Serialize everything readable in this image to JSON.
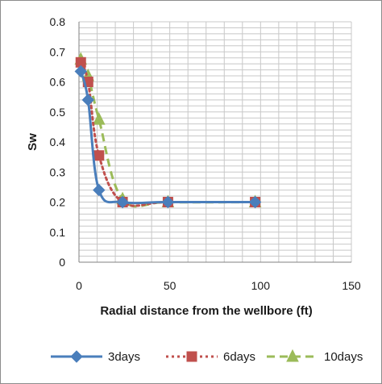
{
  "chart_data": {
    "type": "line",
    "title": "",
    "xlabel": "Radial distance  from the wellbore (ft)",
    "ylabel": "Sw",
    "xlim": [
      0,
      150
    ],
    "ylim": [
      0,
      0.8
    ],
    "xticks": [
      "0",
      "50",
      "100",
      "150"
    ],
    "yticks": [
      "0",
      "0.1",
      "0.2",
      "0.3",
      "0.4",
      "0.5",
      "0.6",
      "0.7",
      "0.8"
    ],
    "grid": true,
    "legend_position": "bottom",
    "series": [
      {
        "name": "3days",
        "color": "#4a7ebb",
        "line_style": "solid",
        "marker": "diamond",
        "x": [
          1,
          5,
          11,
          24,
          49,
          97
        ],
        "y": [
          0.635,
          0.54,
          0.24,
          0.2,
          0.2,
          0.2
        ]
      },
      {
        "name": "6days",
        "color": "#c0504d",
        "line_style": "dotted",
        "marker": "square",
        "x": [
          1,
          5,
          11,
          24,
          49,
          97
        ],
        "y": [
          0.665,
          0.6,
          0.355,
          0.2,
          0.2,
          0.2
        ]
      },
      {
        "name": "10days",
        "color": "#9bbb59",
        "line_style": "dashed",
        "marker": "triangle",
        "x": [
          1,
          5,
          11,
          24,
          49,
          97
        ],
        "y": [
          0.675,
          0.62,
          0.475,
          0.21,
          0.2,
          0.2
        ]
      }
    ]
  }
}
